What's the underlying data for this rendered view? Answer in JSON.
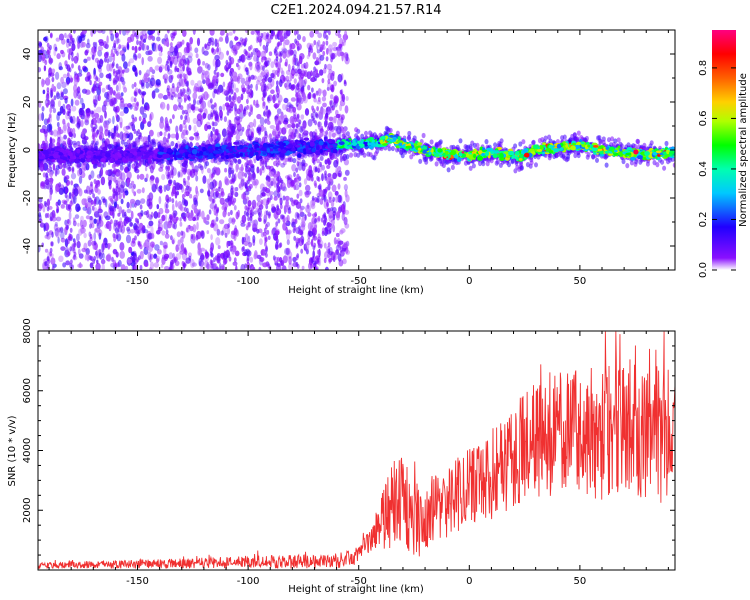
{
  "chart_data": [
    {
      "type": "heatmap",
      "title": "C2E1.2024.094.21.57.R14",
      "xlabel": "Height of straight line (km)",
      "ylabel": "Frequency (Hz)",
      "xlim": [
        -195,
        93
      ],
      "ylim": [
        -50,
        50
      ],
      "x_ticks": [
        -150,
        -100,
        -50,
        0,
        50
      ],
      "y_ticks": [
        -40,
        -20,
        0,
        20,
        40
      ],
      "colorbar": {
        "label": "Normalized spectral amplitude",
        "range": [
          0,
          0.95
        ],
        "ticks": [
          0.0,
          0.2,
          0.4,
          0.6,
          0.8
        ],
        "colormap": [
          "#ffffff",
          "#7f00ff",
          "#0000ff",
          "#00ffff",
          "#00ff00",
          "#ffff00",
          "#ff8000",
          "#ff0000",
          "#ff0080"
        ]
      },
      "ridge_frequency": {
        "x": [
          -195,
          -150,
          -120,
          -90,
          -60,
          -40,
          -35,
          -30,
          -20,
          -10,
          0,
          10,
          20,
          25,
          30,
          40,
          50,
          60,
          70,
          80,
          93
        ],
        "y": [
          -2,
          -2,
          -1,
          0,
          2,
          3,
          5,
          2,
          0,
          -2,
          -2,
          -1,
          -3,
          -2,
          0,
          1,
          2,
          0,
          -1,
          -2,
          -1
        ]
      }
    },
    {
      "type": "line",
      "xlabel": "Height of straight line (km)",
      "ylabel": "SNR (10 * v/v)",
      "xlim": [
        -195,
        93
      ],
      "ylim": [
        0,
        8000
      ],
      "x_ticks": [
        -150,
        -100,
        -50,
        0,
        50
      ],
      "y_ticks": [
        2000,
        4000,
        6000,
        8000
      ],
      "series_color": "#f03030",
      "snr_envelope": {
        "x": [
          -195,
          -60,
          -50,
          -45,
          -40,
          -35,
          -30,
          -25,
          -20,
          -10,
          0,
          10,
          20,
          30,
          40,
          50,
          60,
          70,
          80,
          93
        ],
        "mean": [
          150,
          300,
          500,
          900,
          1500,
          2200,
          2500,
          1500,
          1800,
          2300,
          2800,
          3200,
          3800,
          4300,
          4500,
          4500,
          4600,
          4800,
          4500,
          4600
        ],
        "spread": [
          100,
          250,
          300,
          600,
          900,
          1500,
          1500,
          1300,
          1200,
          1200,
          1300,
          1500,
          1800,
          2000,
          2200,
          2200,
          2300,
          2300,
          2300,
          2400
        ]
      }
    }
  ]
}
